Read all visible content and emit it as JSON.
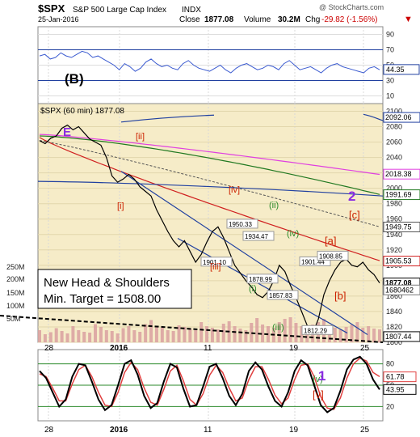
{
  "header": {
    "symbol": "$SPX",
    "name": "S&P 500 Large Cap Index",
    "exchange": "INDX",
    "date": "25-Jan-2016",
    "close_label": "Close",
    "close": "1877.08",
    "volume_label": "Volume",
    "volume": "30.2M",
    "chg_label": "Chg",
    "chg": "-29.82 (-1.56%)",
    "watermark": "@ StockCharts.com"
  },
  "colors": {
    "price_bg": "#f6ecc8",
    "indicator_bg": "#ffffff",
    "price_line": "#000000",
    "ema_magenta": "#e040e0",
    "ema_green": "#207820",
    "ema_red": "#d02020",
    "channel_blue": "#2040a0",
    "volume_bar": "#d9a0a0",
    "label_red": "#cc2200",
    "label_green": "#2a8a2a",
    "label_purple": "#8a2be2",
    "cyclic_red": "#e04040",
    "panel_border": "#888888"
  },
  "chart_data": [
    {
      "type": "line",
      "panel": "top-indicator",
      "ylim": [
        0,
        100
      ],
      "yticks": [
        10,
        30,
        50,
        70,
        90
      ],
      "current_label": "44.35",
      "annotation": "(B)",
      "series": [
        {
          "values": [
            62,
            64,
            58,
            60,
            66,
            62,
            60,
            64,
            68,
            66,
            60,
            62,
            58,
            54,
            50,
            44,
            52,
            48,
            42,
            46,
            54,
            58,
            52,
            48,
            50,
            46,
            44,
            52,
            56,
            50,
            46,
            44,
            42,
            46,
            50,
            44,
            40,
            46,
            50,
            52,
            48,
            44,
            46,
            50,
            48,
            44,
            52,
            56,
            50,
            44,
            46,
            48,
            44,
            40,
            46,
            50,
            52,
            48,
            46,
            44,
            42,
            40,
            46,
            48,
            44
          ]
        }
      ]
    },
    {
      "type": "line",
      "panel": "price",
      "title": "$SPX (60 min) 1877.08",
      "ylim": [
        1800,
        2110
      ],
      "yticks": [
        1800,
        1820,
        1840,
        1860,
        1880,
        1900,
        1920,
        1940,
        1960,
        1980,
        2000,
        2020,
        2040,
        2060,
        2080,
        2100
      ],
      "x_tick_labels": [
        "28",
        "2016",
        "11",
        "19",
        "25"
      ],
      "right_labels": [
        "2092.06",
        "2018.38",
        "1991.69",
        "1949.75",
        "1905.53",
        "1877.08",
        "1680462",
        "1807.44"
      ],
      "price_annotations": [
        "1950.33",
        "1934.47",
        "1901.10",
        "1901.44",
        "1908.85",
        "1878.99",
        "1857.83",
        "1812.29"
      ],
      "wave_labels": [
        "E",
        "[ii]",
        "[i]",
        "[iv]",
        "(ii)",
        "[iii]",
        "(iv)",
        "(i)",
        "(iii)",
        "(v)",
        "[v]",
        "[a]",
        "[b]",
        "[c]",
        "2"
      ],
      "callout_lines": [
        "New Head & Shoulders",
        "Min. Target = 1508.00"
      ],
      "volume_axis_labels": [
        "250M",
        "200M",
        "150M",
        "100M",
        "50M"
      ],
      "series": [
        {
          "name": "SPX",
          "values": [
            2062,
            2058,
            2065,
            2068,
            2078,
            2082,
            2076,
            2080,
            2072,
            2064,
            2060,
            2056,
            2040,
            2016,
            2008,
            2012,
            2018,
            2012,
            2002,
            1996,
            1990,
            1972,
            1958,
            1944,
            1932,
            1924,
            1932,
            1918,
            1904,
            1914,
            1930,
            1944,
            1950,
            1936,
            1918,
            1900,
            1890,
            1880,
            1872,
            1862,
            1858,
            1866,
            1880,
            1900,
            1892,
            1874,
            1858,
            1840,
            1822,
            1812,
            1830,
            1862,
            1880,
            1894,
            1904,
            1908,
            1900,
            1898,
            1904,
            1894,
            1888,
            1877
          ]
        }
      ]
    },
    {
      "type": "line",
      "panel": "bottom-indicator",
      "ylim": [
        0,
        100
      ],
      "yticks": [
        20,
        50,
        80
      ],
      "right_labels": [
        "61.78",
        "43.95"
      ],
      "annotation": "1",
      "x_tick_labels": [
        "28",
        "2016",
        "11",
        "19",
        "25"
      ],
      "series": [
        {
          "values": [
            70,
            60,
            40,
            20,
            30,
            62,
            80,
            78,
            55,
            30,
            15,
            22,
            50,
            80,
            85,
            65,
            35,
            18,
            25,
            55,
            80,
            75,
            45,
            20,
            22,
            48,
            76,
            80,
            60,
            35,
            22,
            38,
            70,
            82,
            72,
            48,
            28,
            20,
            40,
            70,
            85,
            78,
            50,
            22,
            12,
            18,
            42,
            72,
            86,
            90,
            80,
            58,
            44
          ]
        },
        {
          "values": [
            66,
            62,
            46,
            28,
            28,
            52,
            72,
            78,
            62,
            40,
            22,
            20,
            40,
            68,
            82,
            72,
            46,
            26,
            22,
            44,
            70,
            78,
            56,
            30,
            22,
            38,
            64,
            78,
            68,
            46,
            28,
            32,
            58,
            76,
            76,
            58,
            36,
            24,
            32,
            58,
            78,
            80,
            62,
            34,
            18,
            16,
            32,
            60,
            80,
            88,
            84,
            68,
            62
          ]
        }
      ]
    }
  ]
}
